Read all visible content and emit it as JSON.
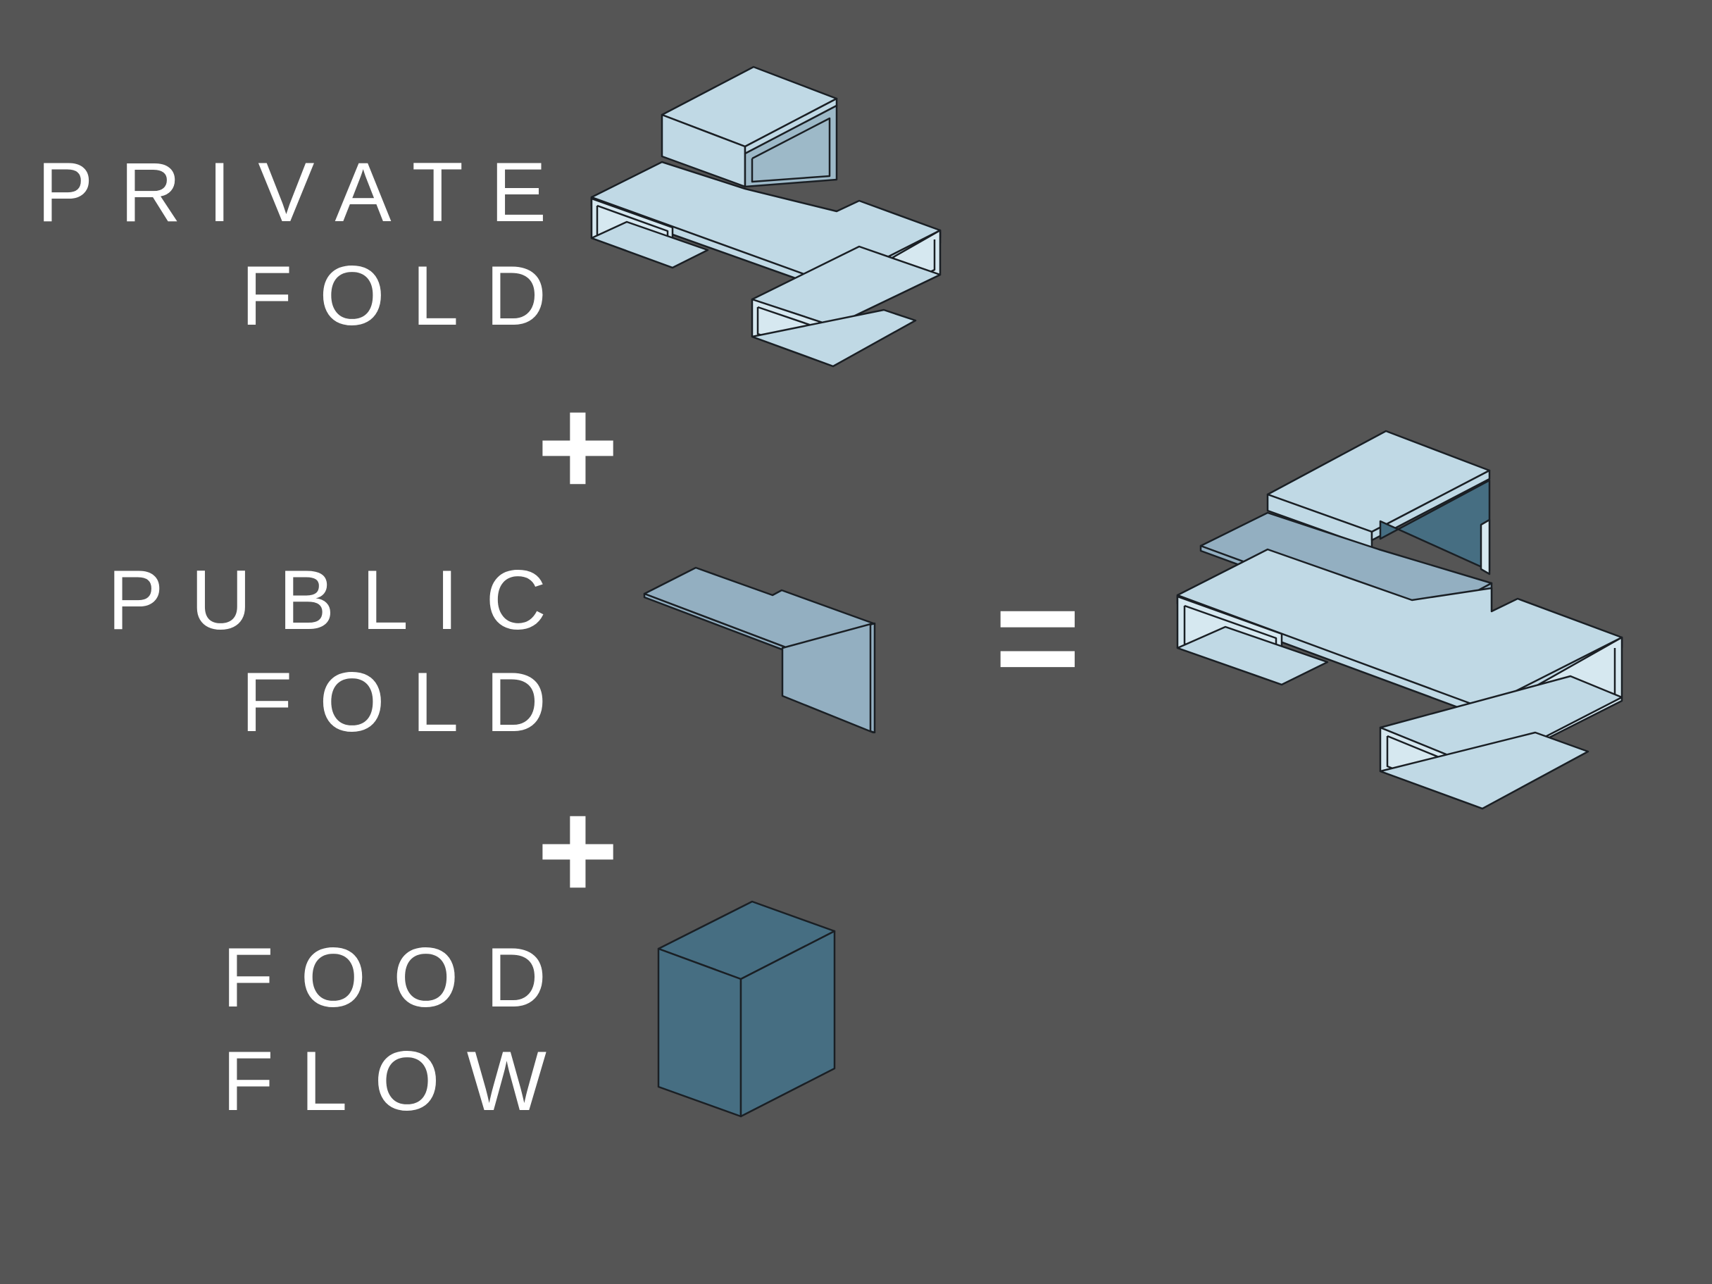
{
  "labels": {
    "private_line1": "PRIVATE",
    "private_line2": "FOLD",
    "public_line1": "PUBLIC",
    "public_line2": "FOLD",
    "food_line1": "FOOD",
    "food_line2": "FLOW"
  },
  "operators": {
    "plus1": "+",
    "plus2": "+",
    "equals": "="
  },
  "colors": {
    "background": "#555555",
    "private_fill": "#c0d9e5",
    "public_fill": "#93afc1",
    "food_fill": "#466e82",
    "text": "#ffffff"
  }
}
